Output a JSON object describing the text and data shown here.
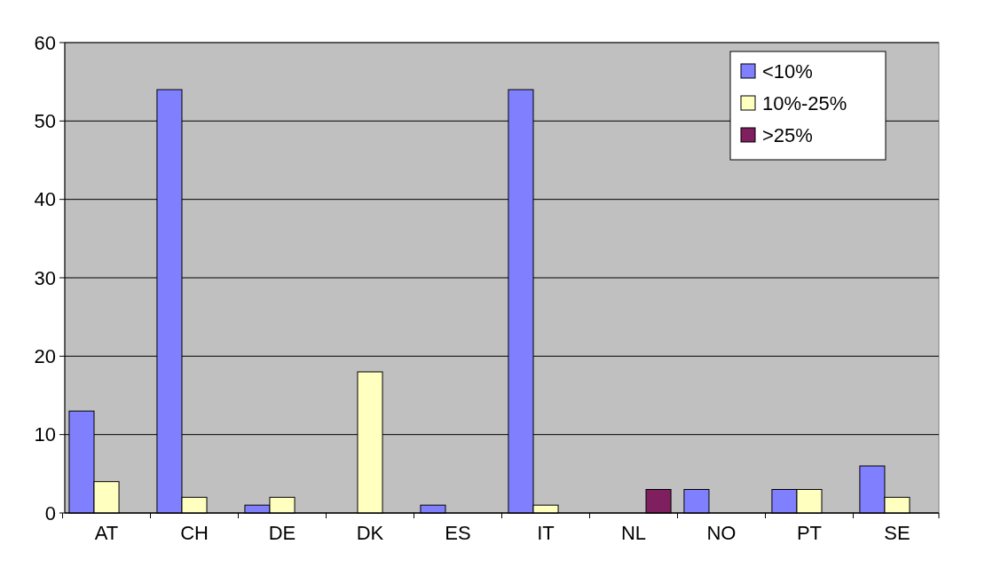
{
  "chart_data": {
    "type": "bar",
    "categories": [
      "AT",
      "CH",
      "DE",
      "DK",
      "ES",
      "IT",
      "NL",
      "NO",
      "PT",
      "SE"
    ],
    "series": [
      {
        "name": "<10%",
        "color": "#8080ff",
        "values": [
          13,
          54,
          1,
          null,
          1,
          54,
          null,
          3,
          3,
          6
        ]
      },
      {
        "name": "10%-25%",
        "color": "#ffffc0",
        "values": [
          4,
          2,
          2,
          18,
          null,
          1,
          null,
          null,
          3,
          2
        ]
      },
      {
        "name": ">25%",
        "color": "#7f1f5f",
        "values": [
          null,
          null,
          null,
          null,
          null,
          null,
          3,
          null,
          null,
          null
        ]
      }
    ],
    "ylim": [
      0,
      60
    ],
    "yticks": [
      0,
      10,
      20,
      30,
      40,
      50,
      60
    ],
    "grid": "y",
    "legend": "top right"
  }
}
